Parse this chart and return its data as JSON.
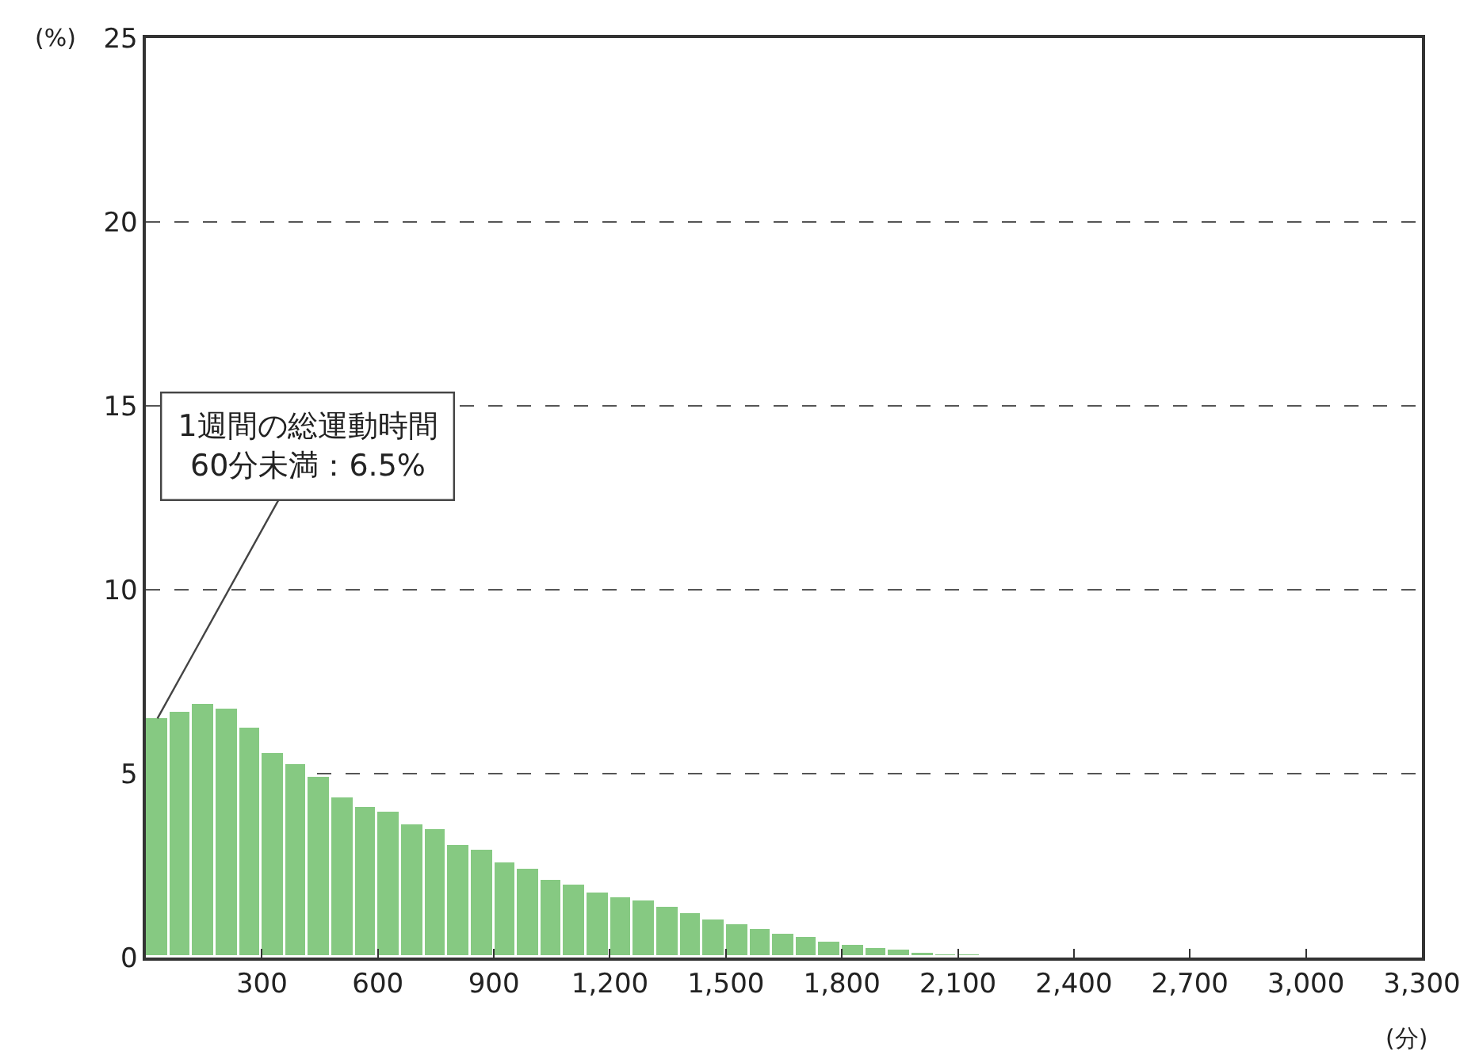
{
  "chart_data": {
    "type": "histogram",
    "bins": [
      0,
      60,
      120,
      180,
      240,
      300,
      360,
      420,
      480,
      540,
      600,
      660,
      720,
      780,
      840,
      900,
      960,
      1020,
      1080,
      1140,
      1200,
      1260,
      1320,
      1380,
      1440,
      1500,
      1560,
      1620,
      1680,
      1740,
      1800,
      1860,
      1920,
      1980,
      2040,
      2100,
      2160,
      2220
    ],
    "values": [
      6.5,
      6.7,
      6.9,
      6.75,
      6.26,
      5.57,
      5.24,
      4.93,
      4.35,
      4.11,
      3.98,
      3.6,
      3.49,
      3.07,
      2.93,
      2.59,
      2.4,
      2.1,
      2.0,
      1.78,
      1.65,
      1.55,
      1.38,
      1.19,
      1.03,
      0.9,
      0.76,
      0.63,
      0.55,
      0.42,
      0.36,
      0.26,
      0.2,
      0.14,
      0.1,
      0.07,
      0.03
    ],
    "color": "#86c982",
    "xlabel": "(分)",
    "ylabel": "(%)",
    "xlim": [
      0,
      3300
    ],
    "xticks": [
      {
        "value": 300,
        "label": "300"
      },
      {
        "value": 600,
        "label": "600"
      },
      {
        "value": 900,
        "label": "900"
      },
      {
        "value": 1200,
        "label": "1,200"
      },
      {
        "value": 1500,
        "label": "1,500"
      },
      {
        "value": 1800,
        "label": "1,800"
      },
      {
        "value": 2100,
        "label": "2,100"
      },
      {
        "value": 2400,
        "label": "2,400"
      },
      {
        "value": 2700,
        "label": "2,700"
      },
      {
        "value": 3000,
        "label": "3,000"
      },
      {
        "value": 3300,
        "label": "3,300"
      }
    ],
    "ylim": [
      0,
      25
    ],
    "yticks": [
      0,
      5,
      10,
      15,
      20,
      25
    ],
    "grid": "y",
    "annotations": [
      {
        "text": "1週間の総運動時間\n60分未満：6.5%",
        "x": 30,
        "y": 6.5
      }
    ]
  }
}
